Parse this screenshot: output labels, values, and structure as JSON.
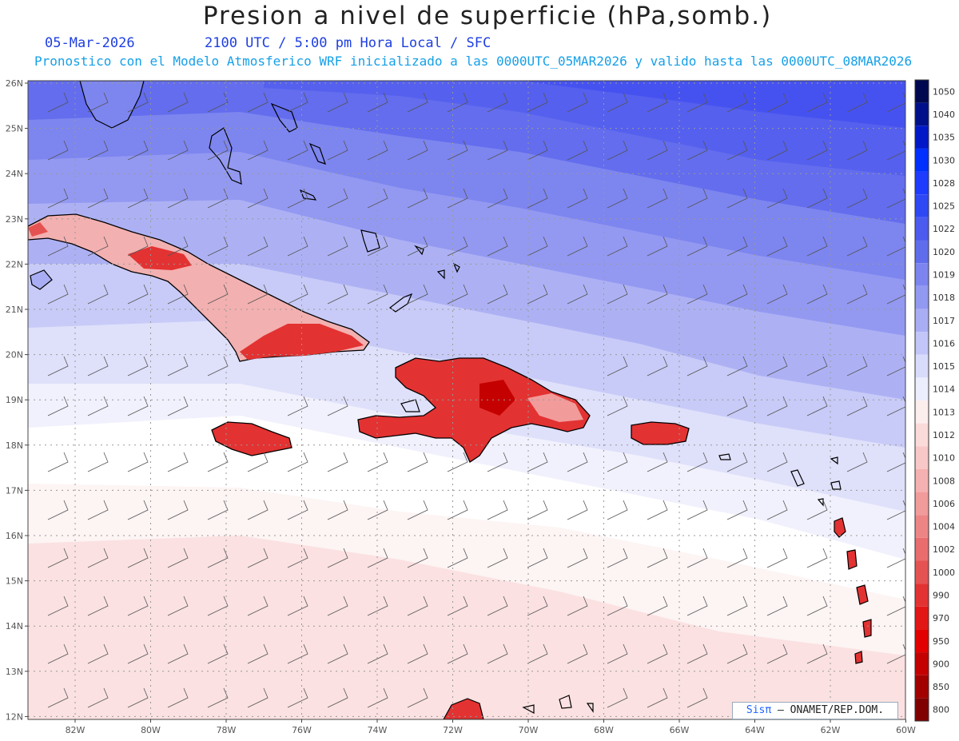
{
  "title": "Presion a nivel de superficie (hPa,somb.)",
  "date": "05-Mar-2026",
  "time_info": "2100 UTC / 5:00 pm Hora Local / SFC",
  "forecast_info": "Pronostico con el Modelo Atmosferico WRF inicializado a las 0000UTC_05MAR2026 y valido hasta las  0000UTC_08MAR2026",
  "credit": {
    "brand": "Sisπ",
    "org": "– ONAMET/REP.DOM."
  },
  "lat_labels": [
    "26N",
    "25N",
    "24N",
    "23N",
    "22N",
    "21N",
    "20N",
    "19N",
    "18N",
    "17N",
    "16N",
    "15N",
    "14N",
    "13N",
    "12N"
  ],
  "lon_labels": [
    "82W",
    "80W",
    "78W",
    "76W",
    "74W",
    "72W",
    "70W",
    "68W",
    "66W",
    "64W",
    "62W",
    "60W"
  ],
  "colorbar": {
    "levels": [
      "1050",
      "1040",
      "1035",
      "1030",
      "1028",
      "1025",
      "1022",
      "1020",
      "1019",
      "1018",
      "1017",
      "1016",
      "1015",
      "1014",
      "1013",
      "1012",
      "1010",
      "1008",
      "1006",
      "1004",
      "1002",
      "1000",
      "990",
      "970",
      "950",
      "900",
      "850",
      "800"
    ],
    "colors": [
      "#000850",
      "#00108a",
      "#0018c8",
      "#0030ff",
      "#1e3cff",
      "#2f48f5",
      "#4b5bef",
      "#5f6ded",
      "#7c85ef",
      "#9299f1",
      "#a9aef4",
      "#c2c5f7",
      "#d9dbfa",
      "#edeefd",
      "#fdeeee",
      "#fbdada",
      "#f8c7c7",
      "#f5b1b1",
      "#f29b9b",
      "#ee8585",
      "#ea6d6d",
      "#e55252",
      "#e33232",
      "#e31616",
      "#e30000",
      "#c40000",
      "#a20000",
      "#800000"
    ]
  },
  "colors": {
    "background": "#ffffff",
    "coast": "#000000",
    "grid": "#999999"
  }
}
